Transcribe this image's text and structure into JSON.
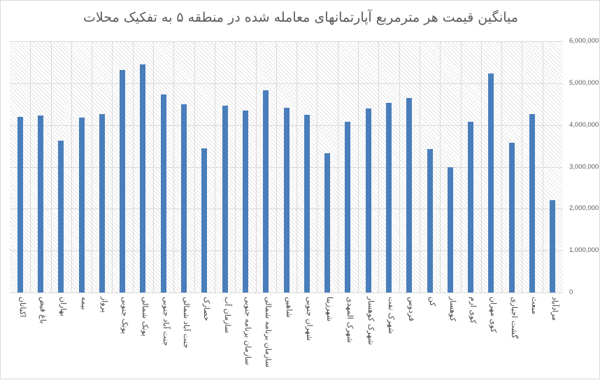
{
  "chart_data": {
    "type": "bar",
    "title": "میانگین قیمت هر مترمربع آپارتمانهای معامله شده در منطقه ۵ به تفکیک محلات",
    "xlabel": "",
    "ylabel": "",
    "ylim": [
      0,
      6000000
    ],
    "yticks": [
      "0",
      "1,000,000",
      "2,000,000",
      "3,000,000",
      "4,000,000",
      "5,000,000",
      "6,000,000"
    ],
    "y_axis_position": "right",
    "grid": true,
    "legend": null,
    "bar_color": "#4a7ebb",
    "categories": [
      "اکباتان",
      "باغ فیض",
      "بهاران",
      "بیمه",
      "پرواز",
      "پونک جنوبی",
      "پونک شمالی",
      "جنت آباد جنوبی",
      "جنت آباد شمالی",
      "حصارک",
      "سازمان آب",
      "سازمان برنامه جنوبی",
      "سازمان برنامه شمالی",
      "شاهین",
      "شهران جنوبی",
      "شهرزیبا",
      "شهرک المهدی",
      "شهرک کوهسار",
      "شهرک نفت",
      "فردوس",
      "کن",
      "کوهسار",
      "کوی ارم",
      "کوی مهران",
      "گشت اجباری",
      "مبعث",
      "مرادآباد"
    ],
    "values": [
      4200000,
      4230000,
      3620000,
      4180000,
      4270000,
      5320000,
      5450000,
      4730000,
      4500000,
      3450000,
      4470000,
      4350000,
      4830000,
      4420000,
      4250000,
      3320000,
      4070000,
      4400000,
      4530000,
      4650000,
      3420000,
      3000000,
      4080000,
      5230000,
      3570000,
      4270000,
      2200000
    ]
  }
}
